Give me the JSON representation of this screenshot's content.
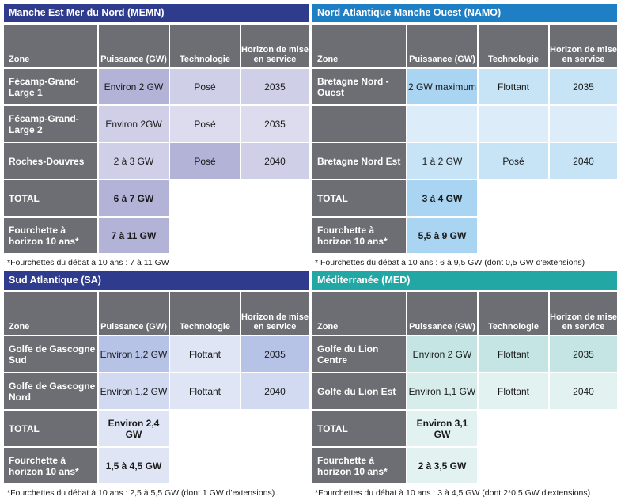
{
  "headers": {
    "zone": "Zone",
    "puissance": "Puissance (GW)",
    "technologie": "Technologie",
    "horizon": "Horizon de mise en service"
  },
  "memn": {
    "title": "Manche Est Mer du Nord (MEMN)",
    "rows": [
      {
        "zone": "Fécamp-Grand-Large 1",
        "puissance": "Environ 2 GW",
        "technologie": "Posé",
        "horizon": "2035"
      },
      {
        "zone": "Fécamp-Grand-Large 2",
        "puissance": "Environ 2GW",
        "technologie": "Posé",
        "horizon": "2035"
      },
      {
        "zone": "Roches-Douvres",
        "puissance": "2 à 3 GW",
        "technologie": "Posé",
        "horizon": "2040"
      }
    ],
    "total_label": "TOTAL",
    "total_value": "6 à 7 GW",
    "range_label": "Fourchette à horizon 10 ans*",
    "range_value": "7 à 11 GW",
    "note": "*Fourchettes du débat à 10 ans : 7 à 11 GW"
  },
  "namo": {
    "title": "Nord Atlantique Manche Ouest (NAMO)",
    "rows": [
      {
        "zone": "Bretagne Nord - Ouest",
        "puissance": "2 GW maximum",
        "technologie": "Flottant",
        "horizon": "2035"
      },
      {
        "zone": "",
        "puissance": "",
        "technologie": "",
        "horizon": ""
      },
      {
        "zone": "Bretagne Nord Est",
        "puissance": "1 à 2 GW",
        "technologie": "Posé",
        "horizon": "2040"
      }
    ],
    "total_label": "TOTAL",
    "total_value": "3 à 4 GW",
    "range_label": "Fourchette à horizon 10 ans*",
    "range_value": "5,5 à 9 GW",
    "note": "* Fourchettes du débat à 10 ans : 6 à 9,5 GW (dont 0,5 GW d'extensions)"
  },
  "sa": {
    "title": "Sud Atlantique (SA)",
    "rows": [
      {
        "zone": "Golfe de Gascogne Sud",
        "puissance": "Environ 1,2 GW",
        "technologie": "Flottant",
        "horizon": "2035"
      },
      {
        "zone": "Golfe de Gascogne Nord",
        "puissance": "Environ 1,2 GW",
        "technologie": "Flottant",
        "horizon": "2040"
      }
    ],
    "total_label": "TOTAL",
    "total_value": "Environ 2,4 GW",
    "range_label": "Fourchette à horizon 10 ans*",
    "range_value": "1,5 à 4,5 GW",
    "note": "*Fourchettes du débat à 10 ans : 2,5 à 5,5 GW (dont 1 GW d'extensions)"
  },
  "med": {
    "title": "Méditerranée (MED)",
    "rows": [
      {
        "zone": "Golfe du Lion Centre",
        "puissance": "Environ 2 GW",
        "technologie": "Flottant",
        "horizon": "2035"
      },
      {
        "zone": "Golfe du Lion Est",
        "puissance": "Environ 1,1 GW",
        "technologie": "Flottant",
        "horizon": "2040"
      }
    ],
    "total_label": "TOTAL",
    "total_value": "Environ 3,1 GW",
    "range_label": "Fourchette à horizon 10 ans*",
    "range_value": "2 à 3,5 GW",
    "note": "*Fourchettes du débat à 10 ans : 3 à 4,5 GW (dont 2*0,5 GW d'extensions)"
  }
}
